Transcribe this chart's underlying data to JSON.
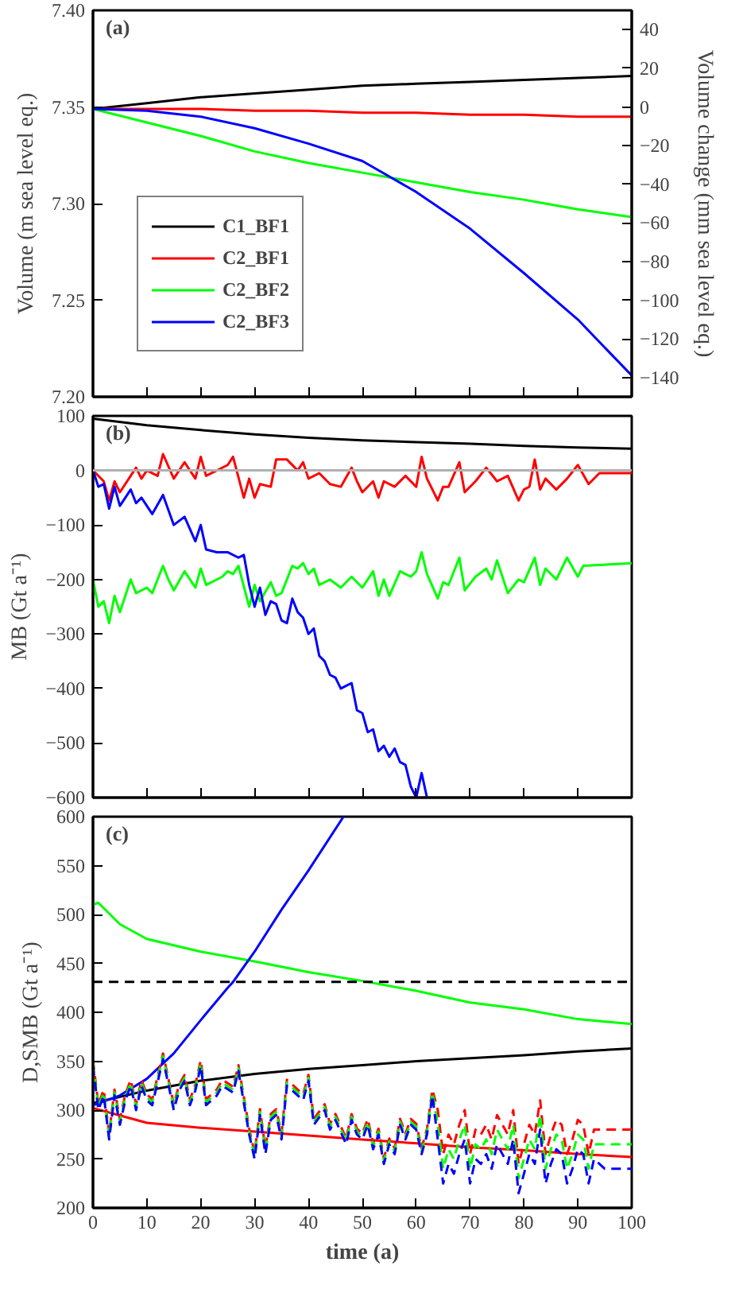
{
  "chart_data": [
    {
      "type": "line",
      "title": "(a)",
      "ylabel": "Volume (m sea level eq.)",
      "y2label": "Volume change (mm sea level eq.)",
      "xlim": [
        0,
        100
      ],
      "xticks": [
        0,
        10,
        20,
        30,
        40,
        50,
        60,
        70,
        80,
        90,
        100
      ],
      "ylim": [
        7.2,
        7.4
      ],
      "yticks": [
        {
          "value": 7.2,
          "label": "7.20"
        },
        {
          "value": 7.25,
          "label": "7.25"
        },
        {
          "value": 7.3,
          "label": "7.30"
        },
        {
          "value": 7.35,
          "label": "7.35"
        },
        {
          "value": 7.4,
          "label": "7.40"
        }
      ],
      "y2lim": [
        -150,
        50
      ],
      "y2ticks": [
        -140,
        -120,
        -100,
        -80,
        -60,
        -40,
        -20,
        0,
        20,
        40
      ],
      "tick_labels": "y",
      "grid": false,
      "legend": "bottom left",
      "line_style": "solid",
      "x": [
        0,
        10,
        20,
        30,
        40,
        50,
        60,
        70,
        80,
        90,
        100
      ],
      "series": [
        {
          "name": "C1_BF1",
          "color": "#000000",
          "values": [
            7.349,
            7.352,
            7.355,
            7.357,
            7.359,
            7.361,
            7.362,
            7.363,
            7.364,
            7.365,
            7.366
          ]
        },
        {
          "name": "C2_BF1",
          "color": "#ff0000",
          "values": [
            7.349,
            7.349,
            7.349,
            7.348,
            7.348,
            7.347,
            7.347,
            7.346,
            7.346,
            7.345,
            7.345
          ]
        },
        {
          "name": "C2_BF2",
          "color": "#00ff00",
          "values": [
            7.349,
            7.342,
            7.335,
            7.327,
            7.321,
            7.316,
            7.311,
            7.306,
            7.302,
            7.297,
            7.293
          ]
        },
        {
          "name": "C2_BF3",
          "color": "#0000ff",
          "values": [
            7.349,
            7.348,
            7.345,
            7.339,
            7.331,
            7.322,
            7.306,
            7.287,
            7.264,
            7.24,
            7.211
          ]
        }
      ]
    },
    {
      "type": "line",
      "title": "(b)",
      "ylabel": "MB (Gt a⁻¹)",
      "xlim": [
        0,
        100
      ],
      "xticks": [
        0,
        10,
        20,
        30,
        40,
        50,
        60,
        70,
        80,
        90,
        100
      ],
      "ylim": [
        -600,
        100
      ],
      "yticks": [
        -600,
        -500,
        -400,
        -300,
        -200,
        -100,
        0,
        100
      ],
      "tick_labels": "y",
      "grid": false,
      "line_style": "solid",
      "ref_lines": [
        {
          "axis": "y",
          "value": 0,
          "color": "#b0b0b0"
        }
      ],
      "series": [
        {
          "color": "#000000",
          "x": [
            0,
            10,
            20,
            30,
            40,
            50,
            60,
            70,
            80,
            90,
            100
          ],
          "values": [
            95,
            83,
            74,
            66,
            60,
            55,
            52,
            49,
            45,
            42,
            40
          ]
        },
        {
          "color": "#ff0000",
          "x": [
            0,
            2,
            3,
            4,
            5,
            7,
            8,
            9,
            10,
            12,
            13,
            15,
            17,
            19,
            20,
            21,
            25,
            26,
            28,
            29,
            30,
            31,
            33,
            34,
            36,
            38,
            39,
            40,
            42,
            44,
            46,
            48,
            49,
            50,
            52,
            53,
            54,
            56,
            58,
            60,
            61,
            62,
            64,
            65,
            66,
            68,
            69,
            71,
            73,
            75,
            77,
            79,
            80,
            81,
            82,
            83,
            84,
            86,
            88,
            90,
            92,
            94,
            100
          ],
          "values": [
            0,
            -20,
            -55,
            -20,
            -40,
            -10,
            5,
            -15,
            0,
            -10,
            30,
            -15,
            15,
            -15,
            25,
            -10,
            10,
            25,
            -50,
            -15,
            -50,
            -25,
            -30,
            20,
            20,
            0,
            15,
            -15,
            -5,
            -25,
            -30,
            5,
            -20,
            -40,
            -20,
            -50,
            -20,
            -30,
            -10,
            -30,
            25,
            -15,
            -55,
            -30,
            -30,
            15,
            -40,
            -20,
            5,
            -20,
            -10,
            -55,
            -35,
            -30,
            20,
            -35,
            -15,
            -35,
            -15,
            10,
            -25,
            -5,
            -5
          ]
        },
        {
          "color": "#00ff00",
          "x": [
            0,
            1,
            2,
            3,
            4,
            5,
            7,
            8,
            10,
            11,
            13,
            14,
            15,
            17,
            19,
            20,
            21,
            24,
            25,
            26,
            27,
            29,
            30,
            31,
            33,
            34,
            35,
            37,
            38,
            39,
            40,
            41,
            42,
            44,
            46,
            48,
            50,
            52,
            53,
            54,
            55,
            57,
            59,
            60,
            61,
            62,
            64,
            65,
            66,
            68,
            69,
            71,
            73,
            74,
            75,
            77,
            79,
            80,
            82,
            83,
            84,
            86,
            88,
            90,
            91,
            100
          ],
          "values": [
            -200,
            -250,
            -240,
            -280,
            -230,
            -260,
            -200,
            -225,
            -215,
            -225,
            -175,
            -200,
            -220,
            -185,
            -215,
            -180,
            -210,
            -195,
            -185,
            -190,
            -175,
            -250,
            -210,
            -240,
            -205,
            -230,
            -225,
            -175,
            -180,
            -170,
            -190,
            -180,
            -210,
            -200,
            -215,
            -195,
            -215,
            -185,
            -230,
            -200,
            -230,
            -185,
            -195,
            -185,
            -150,
            -190,
            -235,
            -205,
            -210,
            -160,
            -220,
            -195,
            -180,
            -200,
            -165,
            -225,
            -200,
            -205,
            -160,
            -210,
            -180,
            -200,
            -160,
            -195,
            -175,
            -170
          ]
        },
        {
          "color": "#0000ff",
          "x": [
            0,
            1,
            2,
            3,
            4,
            5,
            7,
            8,
            9,
            10,
            11,
            13,
            15,
            17,
            19,
            20,
            21,
            23,
            25,
            27,
            28,
            29,
            30,
            31,
            32,
            33,
            34,
            35,
            36,
            37,
            38,
            39,
            40,
            41,
            42,
            43,
            44,
            45,
            46,
            47,
            48,
            49,
            50,
            51,
            52,
            53,
            54,
            55,
            56,
            57,
            58,
            59,
            60,
            61,
            62
          ],
          "values": [
            0,
            -30,
            -25,
            -70,
            -30,
            -65,
            -35,
            -60,
            -50,
            -65,
            -80,
            -45,
            -100,
            -85,
            -130,
            -100,
            -145,
            -150,
            -150,
            -160,
            -155,
            -210,
            -250,
            -215,
            -265,
            -240,
            -245,
            -275,
            -280,
            -235,
            -260,
            -270,
            -300,
            -290,
            -340,
            -350,
            -375,
            -380,
            -400,
            -395,
            -390,
            -440,
            -445,
            -480,
            -475,
            -515,
            -505,
            -525,
            -510,
            -535,
            -540,
            -580,
            -600,
            -555,
            -600
          ]
        }
      ]
    },
    {
      "type": "line",
      "title": "(c)",
      "xlabel": "time (a)",
      "ylabel": "D,SMB (Gt a⁻¹)",
      "xlim": [
        0,
        100
      ],
      "xticks": [
        0,
        10,
        20,
        30,
        40,
        50,
        60,
        70,
        80,
        90,
        100
      ],
      "ylim": [
        200,
        600
      ],
      "yticks": [
        200,
        250,
        300,
        350,
        400,
        450,
        500,
        550,
        600
      ],
      "grid": false,
      "line_style": "solid",
      "ref_lines": [
        {
          "axis": "y",
          "value": 431,
          "color": "#000000",
          "line_style": "dashed"
        }
      ],
      "series": [
        {
          "color": "#00ff00",
          "x": [
            0,
            1,
            5,
            10,
            20,
            30,
            40,
            50,
            60,
            70,
            80,
            90,
            100
          ],
          "values": [
            510,
            512,
            490,
            475,
            462,
            452,
            441,
            432,
            422,
            410,
            403,
            393,
            388
          ]
        },
        {
          "color": "#000000",
          "x": [
            0,
            10,
            20,
            30,
            40,
            50,
            60,
            70,
            80,
            90,
            100
          ],
          "values": [
            307,
            320,
            330,
            337,
            342,
            346,
            350,
            353,
            356,
            360,
            363
          ]
        },
        {
          "color": "#ff0000",
          "x": [
            0,
            10,
            20,
            30,
            40,
            50,
            60,
            70,
            80,
            90,
            100
          ],
          "values": [
            302,
            287,
            282,
            278,
            274,
            270,
            266,
            262,
            259,
            255,
            252
          ]
        },
        {
          "color": "#0000ff",
          "x": [
            0,
            5,
            10,
            15,
            20,
            25,
            26,
            30,
            35,
            40,
            46.5
          ],
          "values": [
            305,
            315,
            332,
            358,
            392,
            425,
            431,
            462,
            505,
            545,
            600
          ]
        },
        {
          "color": "#ff0000",
          "line_style": "dashed",
          "x": [
            0,
            1,
            2,
            3,
            4,
            5,
            6,
            7,
            8,
            9,
            10,
            11,
            13,
            15,
            16,
            17,
            18,
            19,
            20,
            21,
            23,
            24,
            26,
            27,
            29,
            30,
            31,
            32,
            33,
            34,
            35,
            36,
            37,
            39,
            40,
            41,
            43,
            44,
            45,
            47,
            48,
            49,
            50,
            51,
            52,
            53,
            54,
            55,
            56,
            57,
            58,
            59,
            60,
            61,
            62,
            63,
            64,
            65,
            66,
            67,
            68,
            69,
            70,
            71,
            72,
            73,
            74,
            75,
            76,
            77,
            78,
            79,
            80,
            81,
            82,
            83,
            84,
            85,
            86,
            87,
            88,
            89,
            90,
            91,
            92,
            93,
            95,
            100
          ],
          "values": [
            351,
            306,
            321,
            276,
            321,
            291,
            316,
            331,
            306,
            331,
            316,
            311,
            358,
            306,
            326,
            336,
            311,
            326,
            351,
            311,
            321,
            331,
            324,
            346,
            281,
            256,
            301,
            261,
            296,
            301,
            276,
            331,
            326,
            316,
            336,
            291,
            306,
            286,
            296,
            271,
            296,
            281,
            276,
            291,
            266,
            281,
            251,
            271,
            261,
            291,
            276,
            291,
            286,
            261,
            281,
            321,
            300,
            255,
            275,
            265,
            285,
            300,
            255,
            280,
            275,
            285,
            270,
            295,
            285,
            275,
            300,
            245,
            265,
            285,
            275,
            310,
            255,
            275,
            290,
            285,
            255,
            270,
            290,
            285,
            255,
            280,
            280,
            280
          ]
        },
        {
          "color": "#00ff00",
          "line_style": "dashed",
          "x": [
            0,
            1,
            2,
            3,
            4,
            5,
            6,
            7,
            8,
            9,
            10,
            11,
            13,
            15,
            16,
            17,
            18,
            19,
            20,
            21,
            23,
            24,
            26,
            27,
            29,
            30,
            31,
            32,
            33,
            34,
            35,
            36,
            37,
            39,
            40,
            41,
            43,
            44,
            45,
            47,
            48,
            49,
            50,
            51,
            52,
            53,
            54,
            55,
            56,
            57,
            58,
            59,
            60,
            61,
            62,
            63,
            64,
            65,
            66,
            67,
            68,
            69,
            70,
            71,
            72,
            73,
            74,
            75,
            76,
            77,
            78,
            79,
            80,
            81,
            82,
            83,
            84,
            85,
            86,
            87,
            88,
            89,
            90,
            91,
            92,
            93,
            95,
            100
          ],
          "values": [
            348,
            303,
            318,
            273,
            318,
            288,
            313,
            328,
            303,
            328,
            313,
            308,
            355,
            303,
            323,
            333,
            308,
            323,
            348,
            308,
            318,
            328,
            321,
            343,
            278,
            253,
            298,
            258,
            293,
            298,
            273,
            328,
            323,
            313,
            333,
            288,
            303,
            283,
            293,
            268,
            293,
            278,
            273,
            288,
            263,
            278,
            248,
            268,
            258,
            288,
            273,
            288,
            283,
            258,
            278,
            318,
            285,
            240,
            260,
            250,
            270,
            285,
            240,
            265,
            260,
            270,
            255,
            280,
            270,
            260,
            285,
            230,
            250,
            270,
            260,
            295,
            240,
            260,
            275,
            270,
            240,
            255,
            275,
            270,
            240,
            265,
            265,
            265
          ]
        },
        {
          "color": "#0000ff",
          "line_style": "dashed",
          "x": [
            0,
            1,
            2,
            3,
            4,
            5,
            6,
            7,
            8,
            9,
            10,
            11,
            13,
            15,
            16,
            17,
            18,
            19,
            20,
            21,
            23,
            24,
            26,
            27,
            29,
            30,
            31,
            32,
            33,
            34,
            35,
            36,
            37,
            39,
            40,
            41,
            43,
            44,
            45,
            47,
            48,
            49,
            50,
            51,
            52,
            53,
            54,
            55,
            56,
            57,
            58,
            59,
            60,
            61,
            62,
            63,
            64,
            65,
            66,
            67,
            68,
            69,
            70,
            71,
            72,
            73,
            74,
            75,
            76,
            77,
            78,
            79,
            80,
            81,
            82,
            83,
            84,
            85,
            86,
            87,
            88,
            89,
            90,
            91,
            92,
            93,
            95,
            100
          ],
          "values": [
            345,
            300,
            315,
            270,
            315,
            285,
            310,
            325,
            300,
            325,
            310,
            305,
            352,
            300,
            320,
            330,
            305,
            320,
            345,
            305,
            315,
            325,
            318,
            340,
            275,
            250,
            295,
            255,
            290,
            295,
            270,
            325,
            320,
            310,
            330,
            285,
            300,
            280,
            290,
            265,
            290,
            275,
            270,
            285,
            260,
            275,
            245,
            265,
            255,
            285,
            270,
            285,
            280,
            255,
            275,
            315,
            270,
            225,
            245,
            235,
            255,
            270,
            225,
            250,
            245,
            255,
            240,
            265,
            255,
            245,
            270,
            215,
            235,
            255,
            245,
            280,
            225,
            245,
            260,
            255,
            225,
            240,
            260,
            255,
            225,
            250,
            240,
            240
          ]
        }
      ]
    }
  ]
}
